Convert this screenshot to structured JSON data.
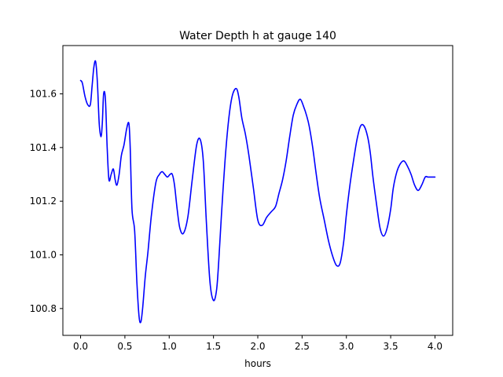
{
  "chart_data": {
    "type": "line",
    "title": "Water Depth h at gauge 140",
    "xlabel": "hours",
    "ylabel": "",
    "xlim": [
      -0.2,
      4.2
    ],
    "ylim": [
      100.7,
      101.78
    ],
    "xticks": [
      0.0,
      0.5,
      1.0,
      1.5,
      2.0,
      2.5,
      3.0,
      3.5,
      4.0
    ],
    "xtick_labels": [
      "0.0",
      "0.5",
      "1.0",
      "1.5",
      "2.0",
      "2.5",
      "3.0",
      "3.5",
      "4.0"
    ],
    "yticks": [
      100.8,
      101.0,
      101.2,
      101.4,
      101.6
    ],
    "ytick_labels": [
      "100.8",
      "101.0",
      "101.2",
      "101.4",
      "101.6"
    ],
    "grid": false,
    "series": [
      {
        "color": "#0000ff",
        "x": [
          0.0,
          0.02,
          0.05,
          0.08,
          0.11,
          0.13,
          0.15,
          0.17,
          0.19,
          0.21,
          0.23,
          0.245,
          0.26,
          0.28,
          0.3,
          0.32,
          0.345,
          0.37,
          0.39,
          0.41,
          0.435,
          0.46,
          0.49,
          0.52,
          0.545,
          0.56,
          0.58,
          0.61,
          0.635,
          0.66,
          0.68,
          0.7,
          0.73,
          0.76,
          0.8,
          0.85,
          0.89,
          0.92,
          0.95,
          0.98,
          1.01,
          1.035,
          1.06,
          1.09,
          1.12,
          1.16,
          1.21,
          1.26,
          1.31,
          1.35,
          1.385,
          1.42,
          1.46,
          1.5,
          1.535,
          1.56,
          1.59,
          1.63,
          1.67,
          1.71,
          1.755,
          1.785,
          1.82,
          1.86,
          1.9,
          1.95,
          2.0,
          2.05,
          2.1,
          2.15,
          2.2,
          2.24,
          2.28,
          2.32,
          2.36,
          2.4,
          2.44,
          2.48,
          2.52,
          2.55,
          2.58,
          2.62,
          2.66,
          2.7,
          2.75,
          2.8,
          2.85,
          2.89,
          2.93,
          2.97,
          3.0,
          3.04,
          3.08,
          3.12,
          3.16,
          3.2,
          3.24,
          3.27,
          3.3,
          3.34,
          3.38,
          3.42,
          3.46,
          3.5,
          3.53,
          3.57,
          3.61,
          3.65,
          3.69,
          3.73,
          3.77,
          3.81,
          3.85,
          3.89,
          3.92,
          3.96,
          4.0
        ],
        "y": [
          101.65,
          101.64,
          101.59,
          101.56,
          101.56,
          101.63,
          101.7,
          101.72,
          101.64,
          101.49,
          101.44,
          101.49,
          101.6,
          101.58,
          101.4,
          101.28,
          101.3,
          101.32,
          101.28,
          101.26,
          101.3,
          101.37,
          101.41,
          101.47,
          101.49,
          101.4,
          101.17,
          101.09,
          100.9,
          100.77,
          100.75,
          100.8,
          100.92,
          101.01,
          101.15,
          101.27,
          101.3,
          101.31,
          101.3,
          101.29,
          101.3,
          101.3,
          101.26,
          101.17,
          101.1,
          101.08,
          101.14,
          101.28,
          101.41,
          101.43,
          101.35,
          101.12,
          100.9,
          100.83,
          100.87,
          100.98,
          101.15,
          101.35,
          101.5,
          101.59,
          101.62,
          101.59,
          101.51,
          101.45,
          101.37,
          101.25,
          101.13,
          101.11,
          101.14,
          101.16,
          101.18,
          101.23,
          101.28,
          101.35,
          101.44,
          101.52,
          101.56,
          101.58,
          101.55,
          101.52,
          101.48,
          101.4,
          101.3,
          101.21,
          101.13,
          101.05,
          100.99,
          100.96,
          100.97,
          101.05,
          101.15,
          101.26,
          101.35,
          101.43,
          101.48,
          101.48,
          101.44,
          101.38,
          101.29,
          101.19,
          101.1,
          101.07,
          101.1,
          101.17,
          101.25,
          101.31,
          101.34,
          101.35,
          101.33,
          101.3,
          101.26,
          101.24,
          101.26,
          101.29,
          101.29,
          101.29,
          101.29
        ]
      }
    ]
  }
}
